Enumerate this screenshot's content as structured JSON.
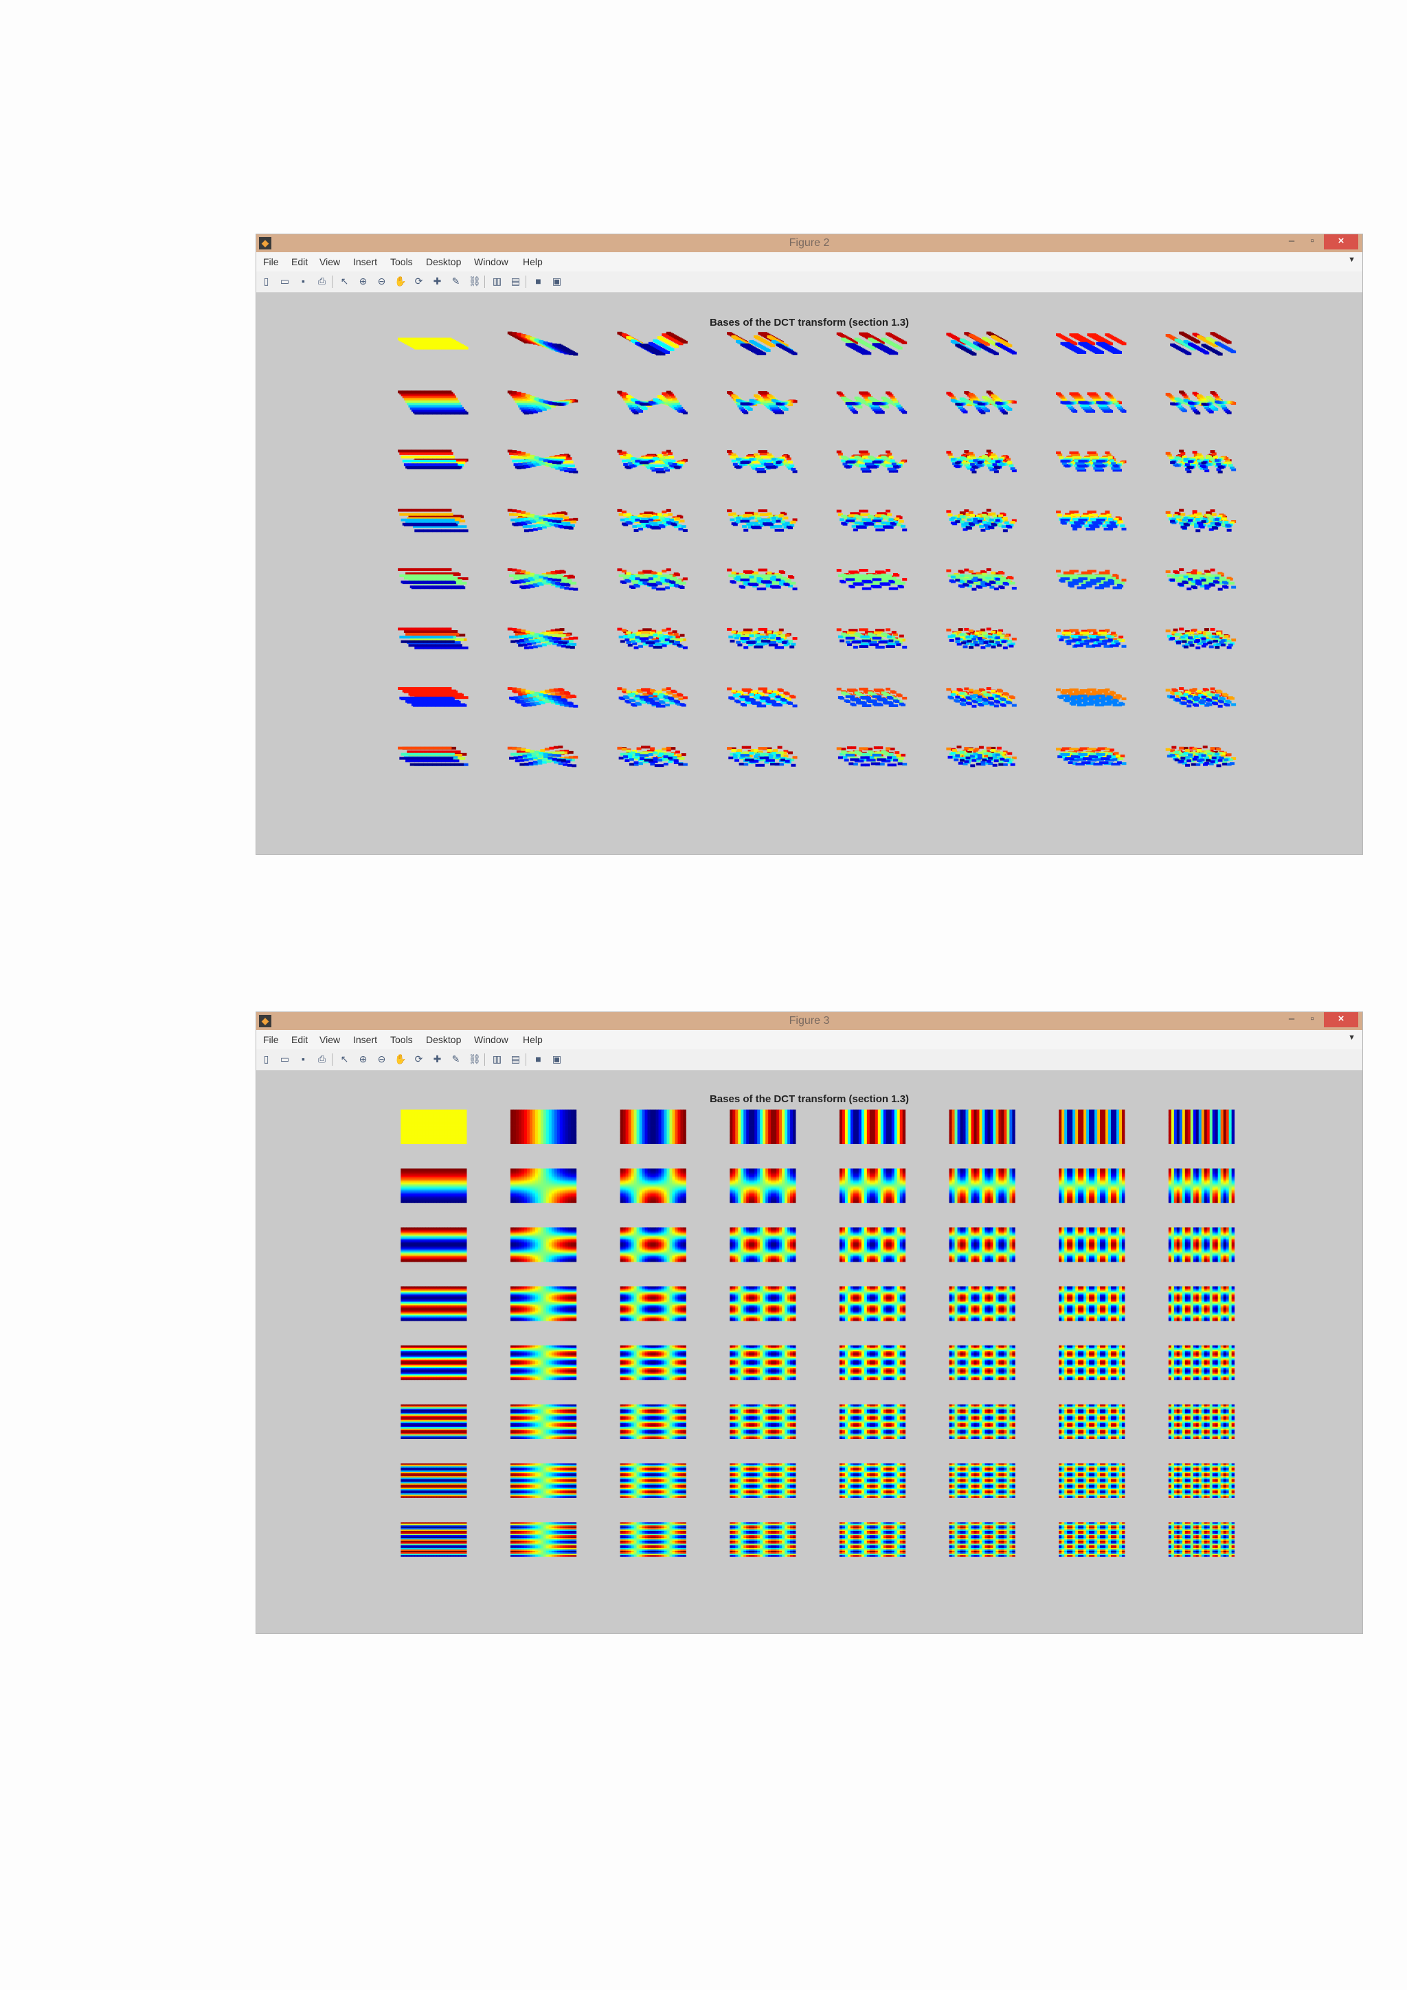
{
  "windows": [
    {
      "title": "Figure 2",
      "axes_title": "Bases of the DCT transform (section 1.3)",
      "view": "3d-surface"
    },
    {
      "title": "Figure 3",
      "axes_title": "Bases of the DCT transform (section 1.3)",
      "view": "2d-image"
    }
  ],
  "menu": [
    "File",
    "Edit",
    "View",
    "Insert",
    "Tools",
    "Desktop",
    "Window",
    "Help"
  ],
  "toolbar_icons": [
    "new-figure-icon",
    "open-file-icon",
    "save-icon",
    "print-icon",
    "edit-plot-icon",
    "zoom-in-icon",
    "zoom-out-icon",
    "pan-icon",
    "rotate-3d-icon",
    "data-cursor-icon",
    "brush-icon",
    "link-plot-icon",
    "insert-colorbar-icon",
    "insert-legend-icon",
    "hide-plot-tools-icon",
    "show-plot-tools-icon"
  ],
  "window_controls": {
    "minimize": "–",
    "maximize": "▫",
    "close": "×"
  },
  "grid": {
    "rows": 8,
    "cols": 8
  },
  "colormap": "jet",
  "colors": {
    "titlebar": "#d6ad8c",
    "figure_background": "#c9c9c9",
    "close_button": "#d9534a"
  }
}
